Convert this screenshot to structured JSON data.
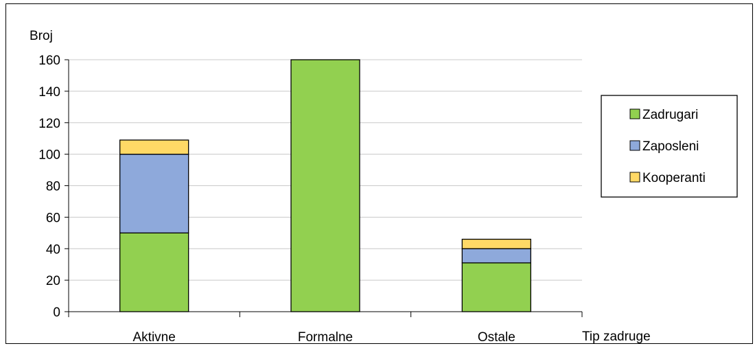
{
  "chart_data": {
    "type": "bar",
    "stacked": true,
    "title": "",
    "xlabel": "Tip zadruge",
    "ylabel": "Broj",
    "categories": [
      "Aktivne",
      "Formalne",
      "Ostale"
    ],
    "series": [
      {
        "name": "Zadrugari",
        "color": "#92D050",
        "values": [
          50,
          160,
          31
        ]
      },
      {
        "name": "Zaposleni",
        "color": "#8EA9DB",
        "values": [
          50,
          0,
          9
        ]
      },
      {
        "name": "Kooperanti",
        "color": "#FFD966",
        "values": [
          9,
          0,
          6
        ]
      }
    ],
    "ylim": [
      0,
      160
    ],
    "yticks": [
      0,
      20,
      40,
      60,
      80,
      100,
      120,
      140,
      160
    ],
    "grid": true,
    "legend_position": "right"
  }
}
